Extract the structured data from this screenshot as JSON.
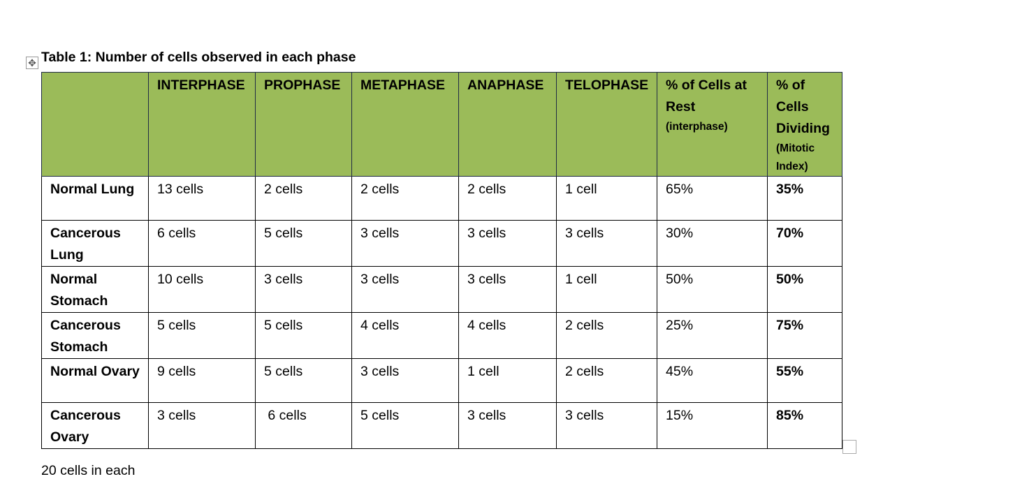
{
  "caption": "Table 1: Number of cells observed in each phase",
  "headers": [
    {
      "main": ""
    },
    {
      "main": "INTERPHASE"
    },
    {
      "main": "PROPHASE"
    },
    {
      "main": "METAPHASE"
    },
    {
      "main": "ANAPHASE"
    },
    {
      "main": "TELOPHASE"
    },
    {
      "main": "% of Cells at Rest",
      "sub": "(interphase)"
    },
    {
      "main": "% of Cells Dividing",
      "sub": "(Mitotic Index)"
    }
  ],
  "rows": [
    [
      "Normal Lung",
      "13 cells",
      "2 cells",
      "2 cells",
      "2 cells",
      "1 cell",
      "65%",
      "35%"
    ],
    [
      "Cancerous Lung",
      "6 cells",
      "5 cells",
      "3 cells",
      "3 cells",
      "3 cells",
      "30%",
      "70%"
    ],
    [
      "Normal Stomach",
      "10 cells",
      "3 cells",
      "3 cells",
      "3 cells",
      "1 cell",
      "50%",
      "50%"
    ],
    [
      "Cancerous Stomach",
      "5 cells",
      "5 cells",
      "4 cells",
      "4 cells",
      "2 cells",
      "25%",
      "75%"
    ],
    [
      "Normal Ovary",
      "9 cells",
      "5 cells",
      "3 cells",
      "1 cell",
      "2 cells",
      "45%",
      "55%"
    ],
    [
      "Cancerous Ovary",
      "3 cells",
      " 6 cells",
      "5 cells",
      "3 cells",
      "3 cells",
      "15%",
      "85%"
    ]
  ],
  "after_text": "20 cells in each",
  "colors": {
    "header_bg": "#9BBB59"
  }
}
